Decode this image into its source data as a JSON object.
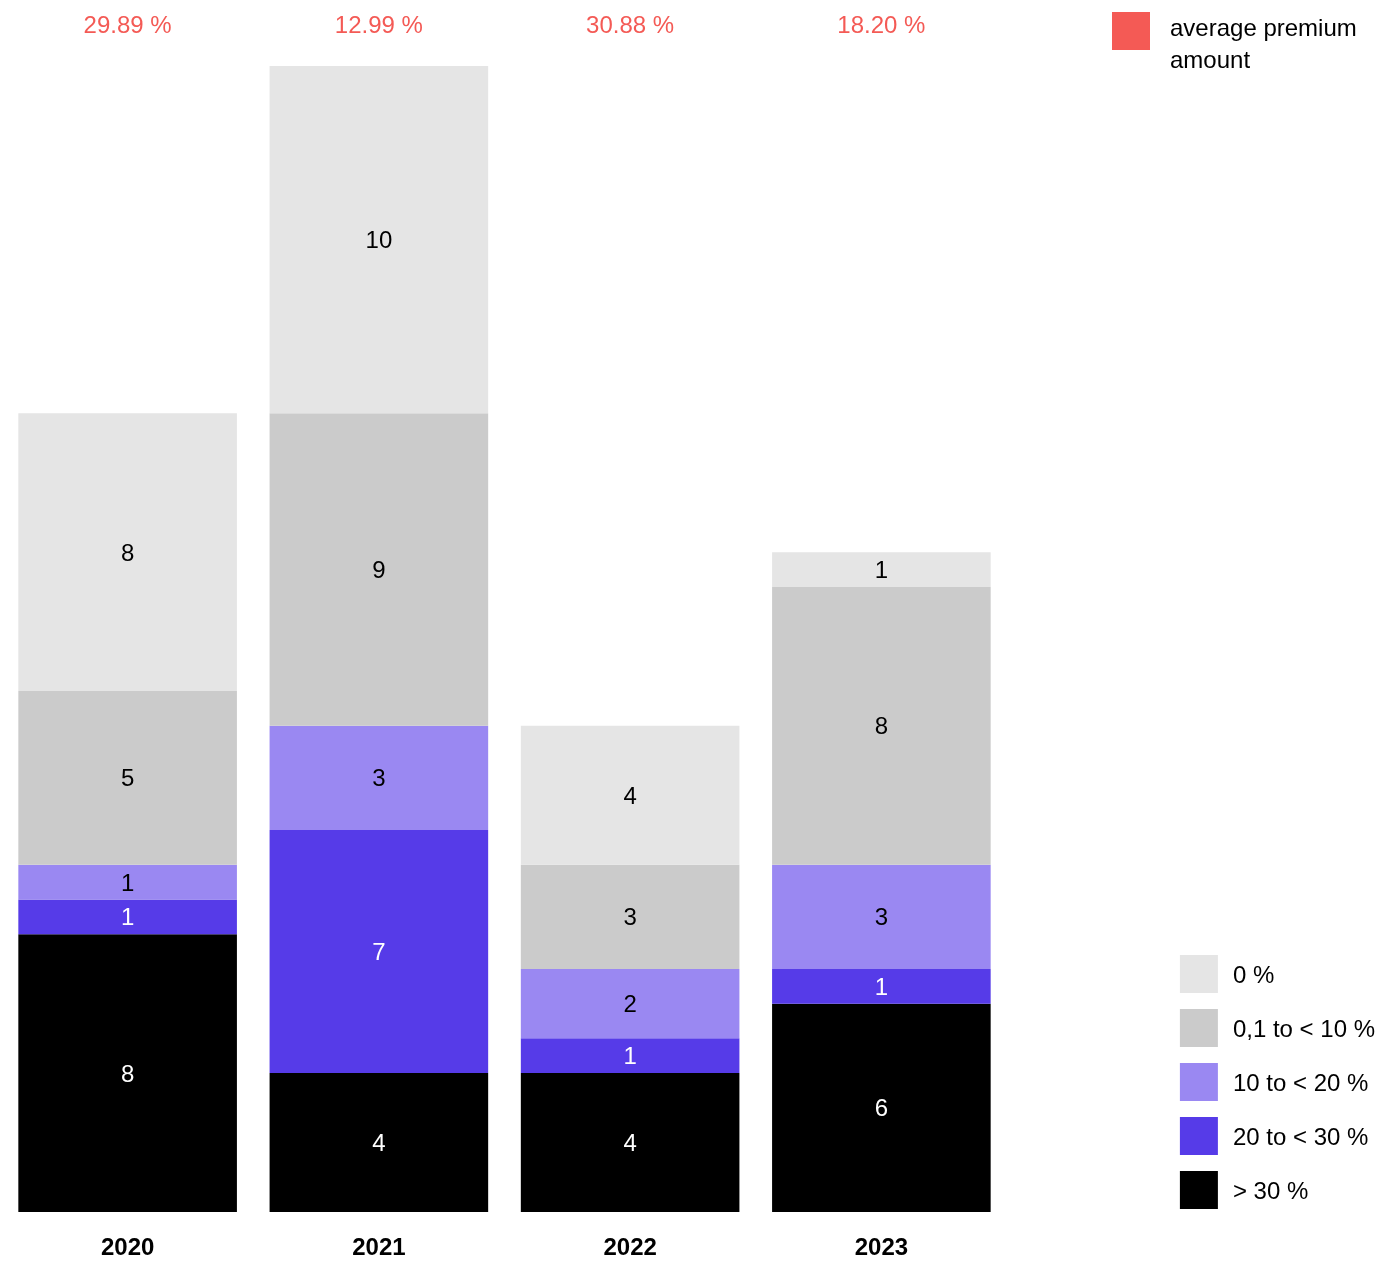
{
  "chart_data": {
    "type": "bar",
    "stacked": true,
    "data_labels": true,
    "legend": "right",
    "categories": [
      "2020",
      "2021",
      "2022",
      "2023"
    ],
    "series": [
      {
        "name": "> 30 %",
        "color": "#000000",
        "values": [
          8,
          4,
          4,
          6
        ]
      },
      {
        "name": "20 to < 30 %",
        "color": "#563be8",
        "values": [
          1,
          7,
          1,
          1
        ]
      },
      {
        "name": "10 to < 20 %",
        "color": "#9a88f2",
        "values": [
          1,
          3,
          2,
          3
        ]
      },
      {
        "name": "0,1 to < 10 %",
        "color": "#cbcbcb",
        "values": [
          5,
          9,
          3,
          8
        ]
      },
      {
        "name": "0 %",
        "color": "#e5e5e5",
        "values": [
          8,
          10,
          4,
          1
        ]
      }
    ],
    "annotations": [
      "29.89 %",
      "12.99 %",
      "30.88 %",
      "18.20 %",
      "average premium amount"
    ]
  }
}
